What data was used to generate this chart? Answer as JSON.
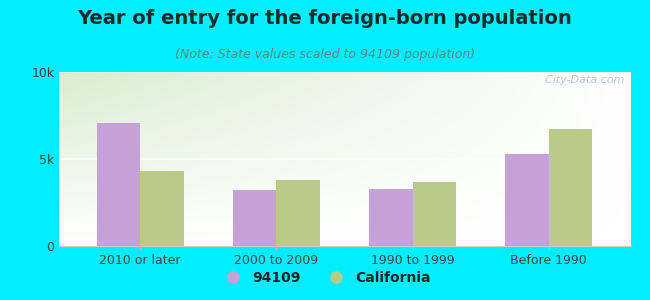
{
  "title": "Year of entry for the foreign-born population",
  "subtitle": "(Note: State values scaled to 94109 population)",
  "categories": [
    "2010 or later",
    "2000 to 2009",
    "1990 to 1999",
    "Before 1990"
  ],
  "values_94109": [
    7050,
    3200,
    3300,
    5300
  ],
  "values_california": [
    4300,
    3800,
    3700,
    6700
  ],
  "color_94109": "#c8a0d8",
  "color_california": "#b8cb88",
  "background_color": "#00eeff",
  "ylim": [
    0,
    10000
  ],
  "ytick_labels": [
    "0",
    "5k",
    "10k"
  ],
  "watermark": "  City-Data.com",
  "bar_width": 0.32,
  "legend_94109": "94109",
  "legend_california": "California",
  "title_fontsize": 14,
  "subtitle_fontsize": 9,
  "tick_fontsize": 9,
  "legend_fontsize": 10
}
